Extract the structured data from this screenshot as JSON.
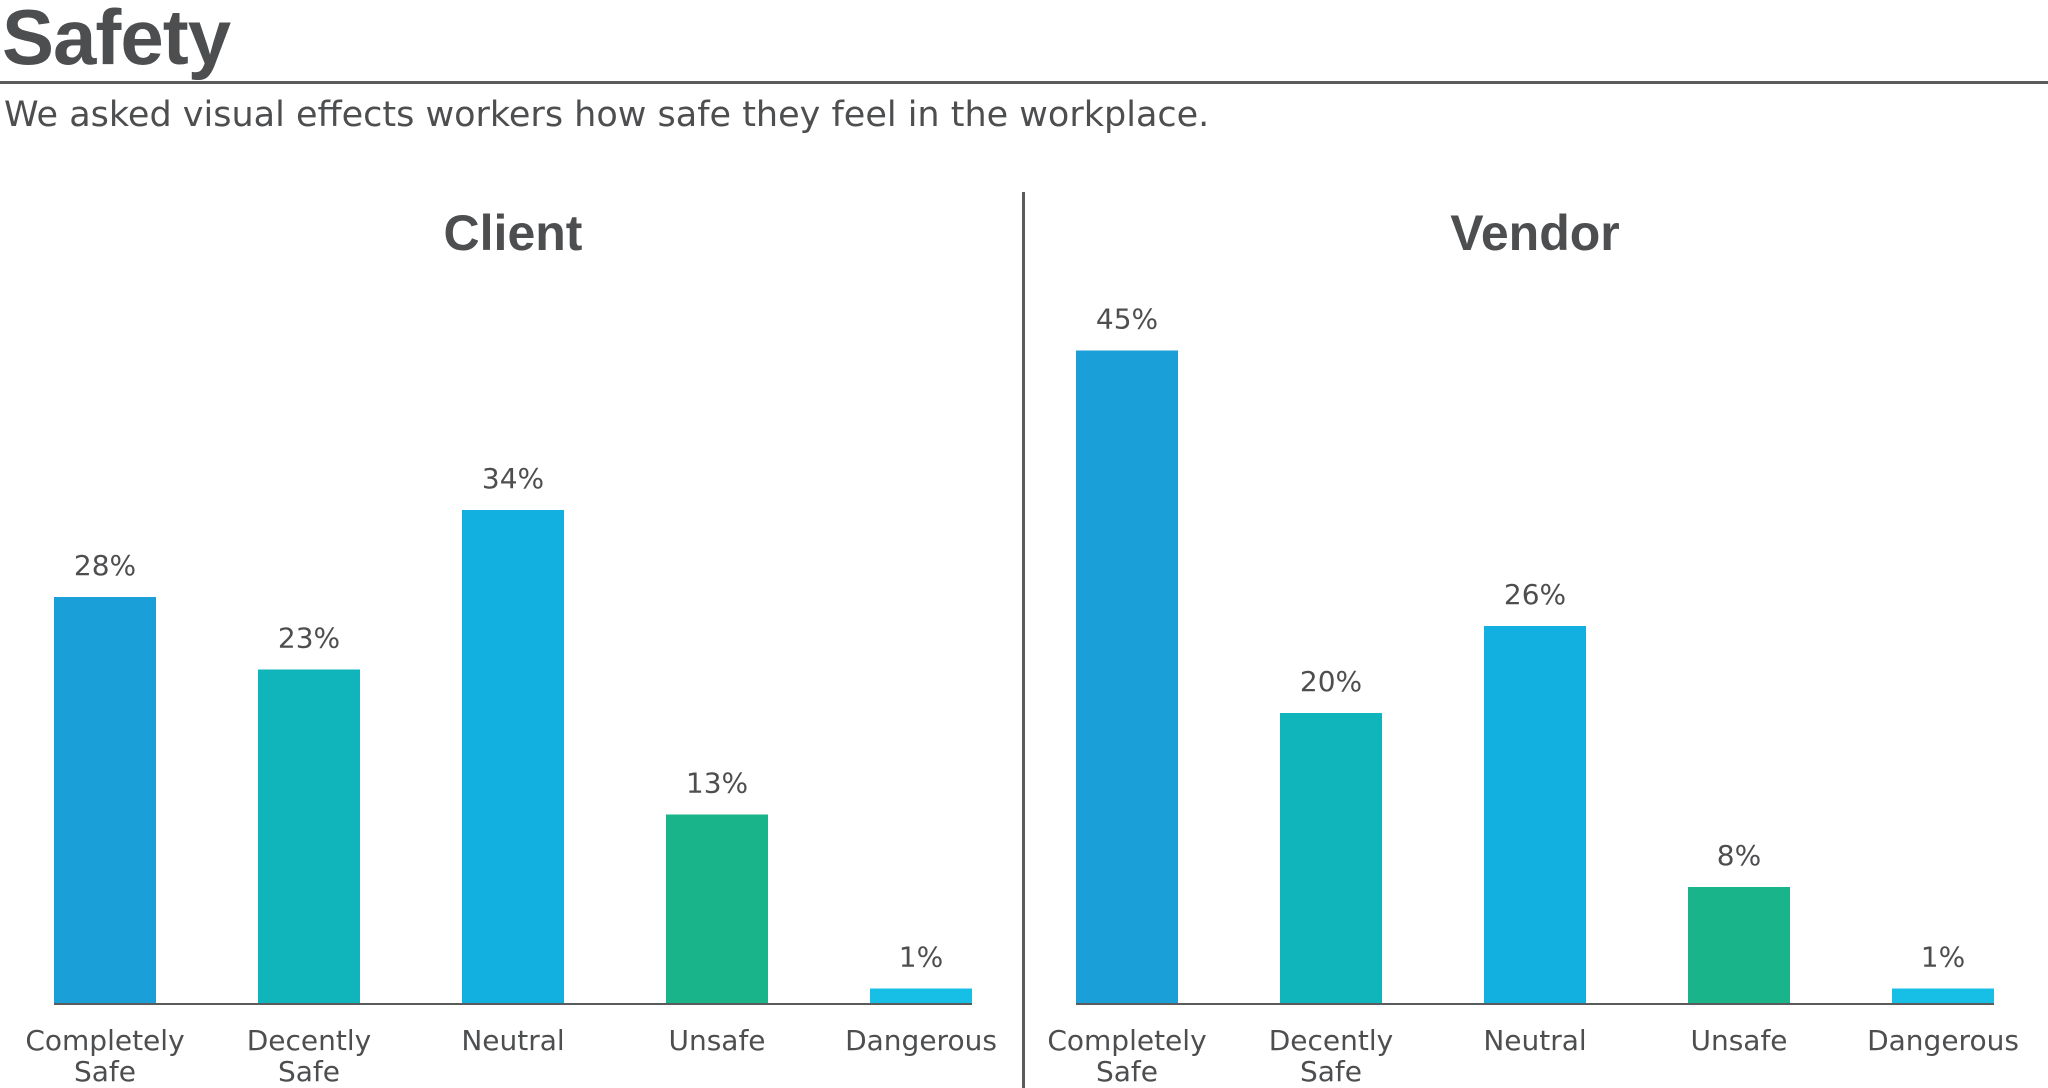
{
  "title": "Safety",
  "subtitle": "We asked visual effects workers how safe they feel in the workplace.",
  "colors": [
    "#1a9fd9",
    "#10b5bb",
    "#11b0e0",
    "#1ab48a",
    "#17bfe6"
  ],
  "chart_data": [
    {
      "type": "bar",
      "title": "Client",
      "categories": [
        "Completely Safe",
        "Decently Safe",
        "Neutral",
        "Unsafe",
        "Dangerous"
      ],
      "values": [
        28,
        23,
        34,
        13,
        1
      ],
      "labels": [
        "28%",
        "23%",
        "34%",
        "13%",
        "1%"
      ],
      "ylim": [
        0,
        50
      ],
      "grid": false
    },
    {
      "type": "bar",
      "title": "Vendor",
      "categories": [
        "Completely Safe",
        "Decently Safe",
        "Neutral",
        "Unsafe",
        "Dangerous"
      ],
      "values": [
        45,
        20,
        26,
        8,
        1
      ],
      "labels": [
        "45%",
        "20%",
        "26%",
        "8%",
        "1%"
      ],
      "ylim": [
        0,
        50
      ],
      "grid": false
    }
  ]
}
